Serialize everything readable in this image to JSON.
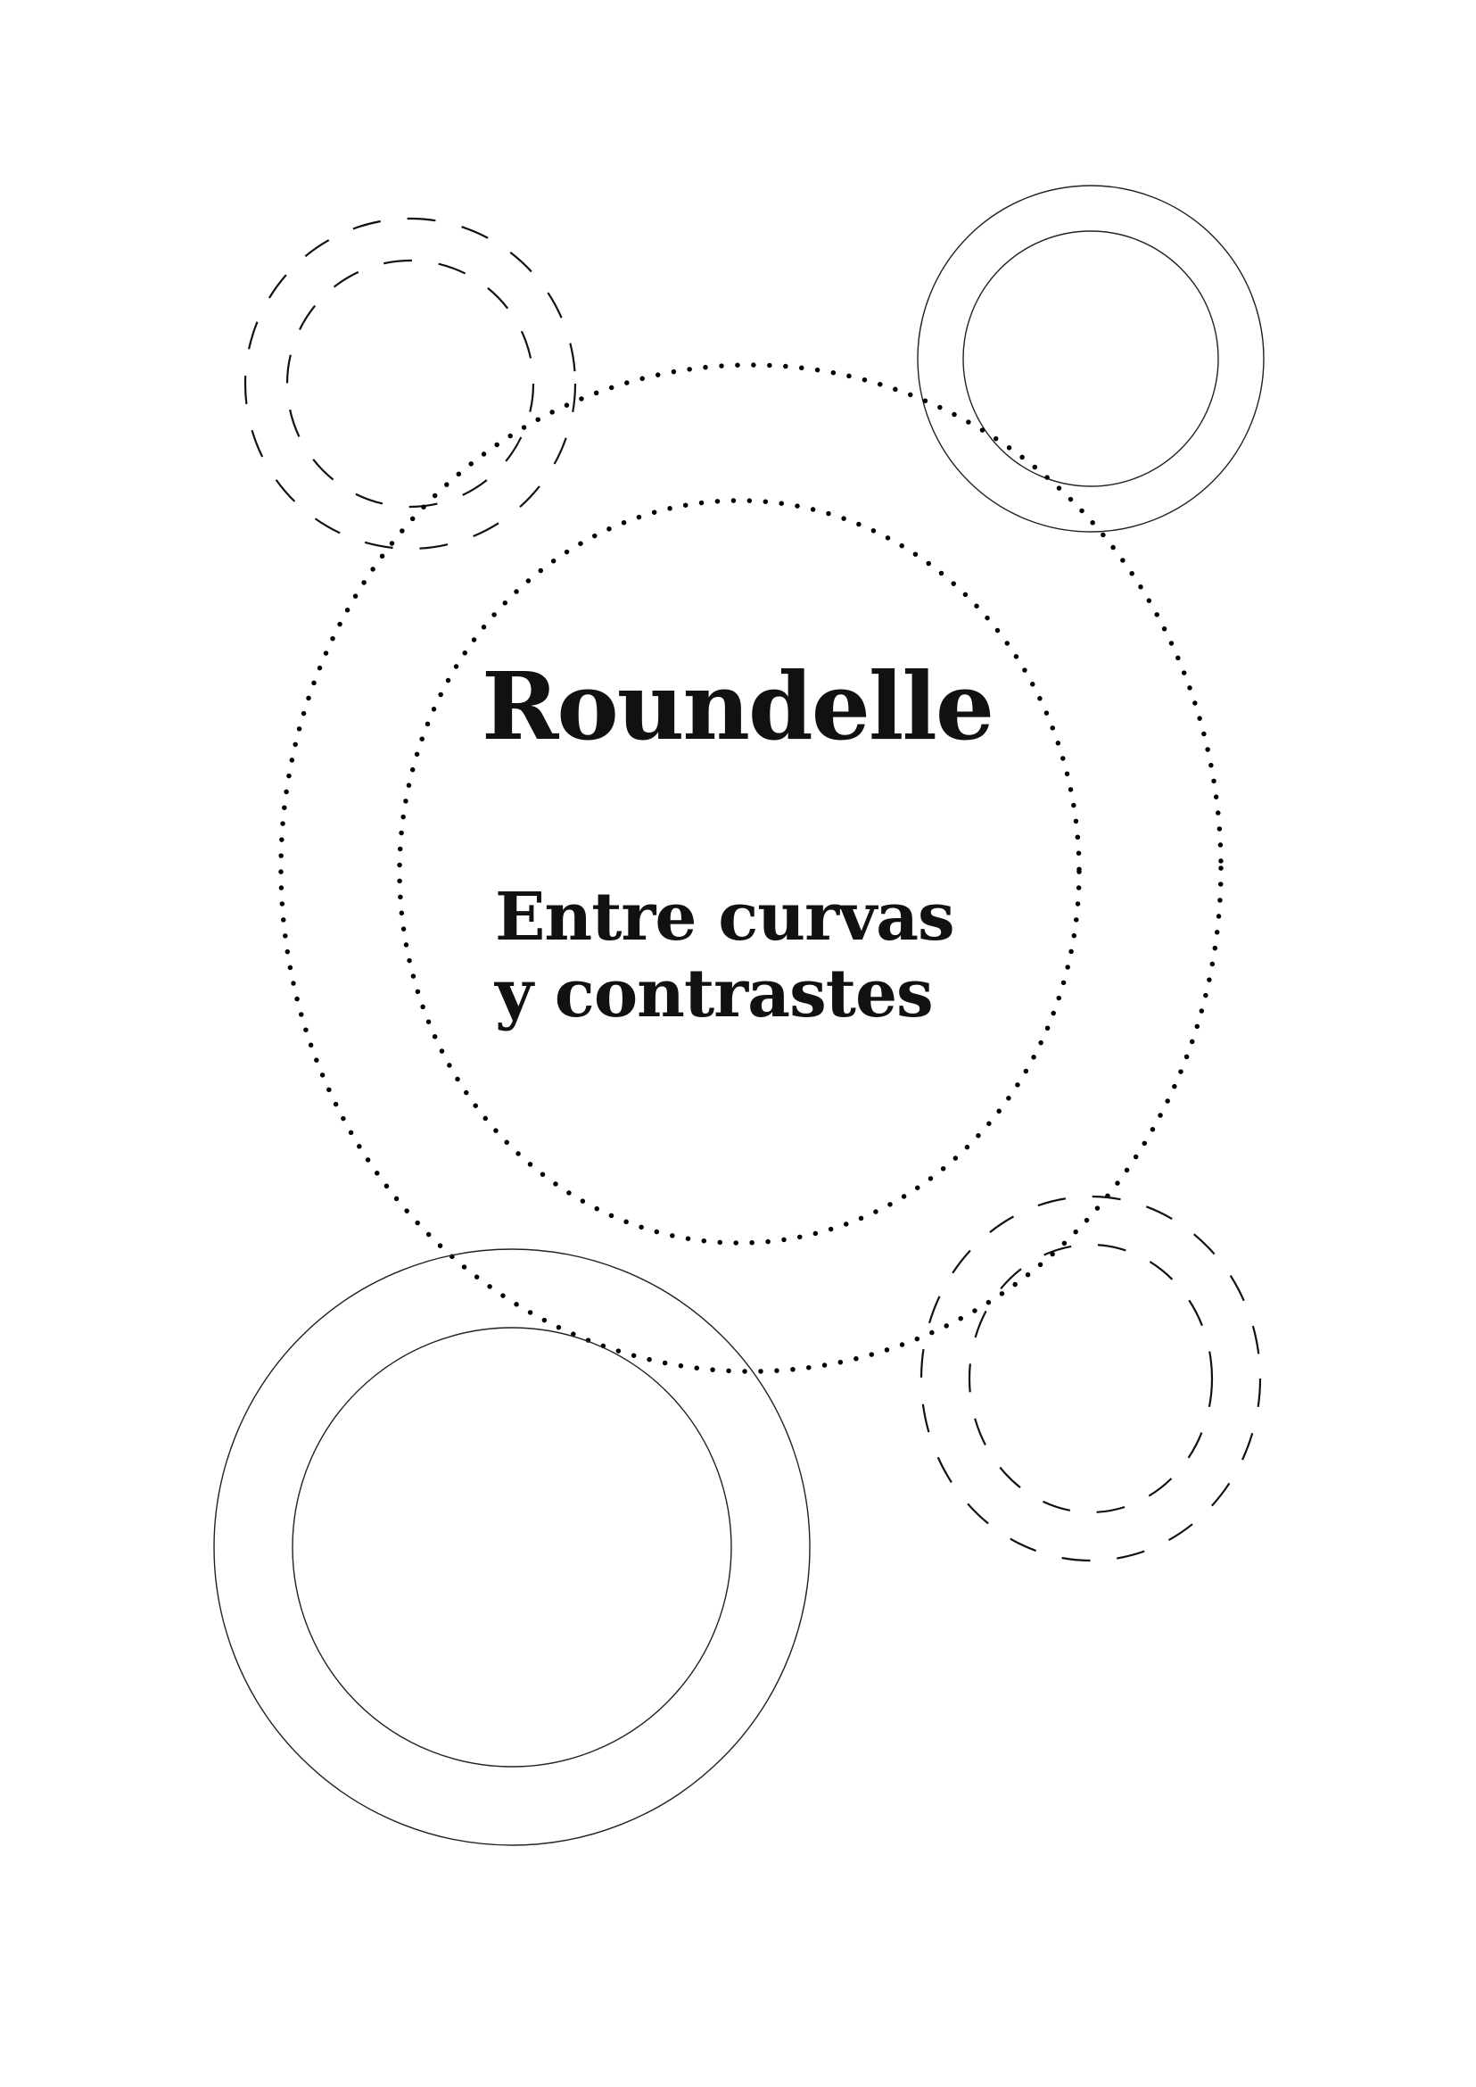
{
  "cover": {
    "title": "Roundelle",
    "subtitle_line1": "Entre curvas",
    "subtitle_line2": "y contrastes"
  },
  "colors": {
    "ink": "#111111",
    "background": "#ffffff"
  }
}
